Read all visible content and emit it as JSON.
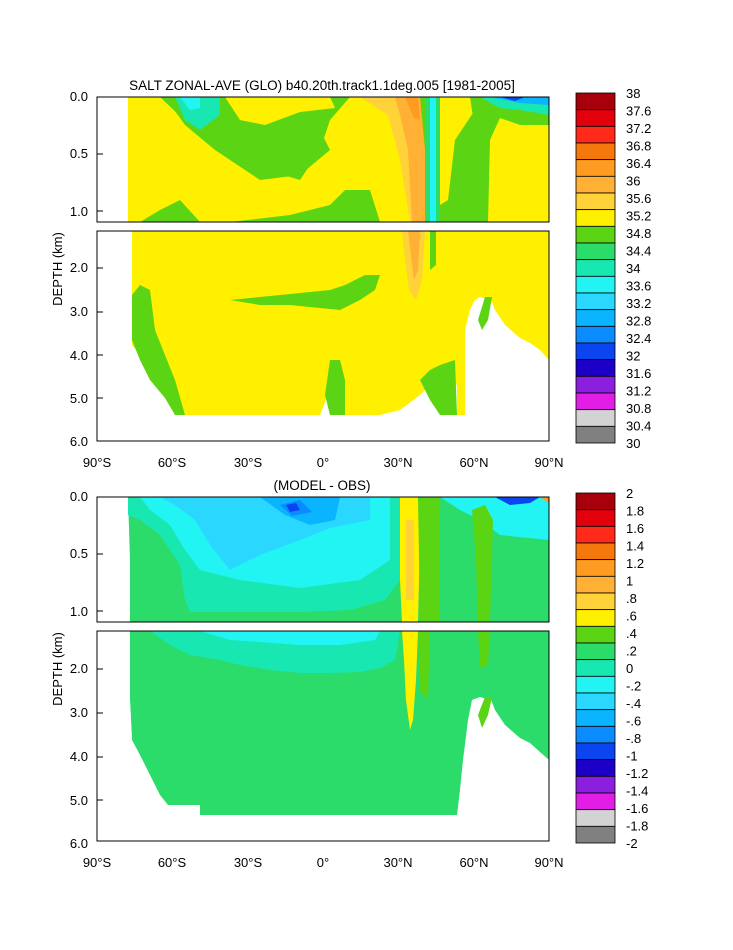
{
  "chart_data": [
    {
      "type": "heatmap",
      "title": "SALT ZONAL-AVE (GLO) b40.20th.track1.1deg.005 [1981-2005]",
      "ylabel": "DEPTH (km)",
      "x_ticks": [
        "90°S",
        "60°S",
        "30°S",
        "0°",
        "30°N",
        "60°N",
        "90°N"
      ],
      "y_ticks_upper": [
        "0.0",
        "0.5",
        "1.0"
      ],
      "y_ticks_lower": [
        "2.0",
        "3.0",
        "4.0",
        "5.0",
        "6.0"
      ],
      "xlim": [
        -90,
        90
      ],
      "ylim_upper_km": [
        0,
        1.1
      ],
      "ylim_lower_km": [
        1.2,
        6.0
      ],
      "colorbar": {
        "labels": [
          "38",
          "37.6",
          "37.2",
          "36.8",
          "36.4",
          "36",
          "35.6",
          "35.2",
          "34.8",
          "34.4",
          "34",
          "33.6",
          "33.2",
          "32.8",
          "32.4",
          "32",
          "31.6",
          "31.2",
          "30.8",
          "30.4",
          "30"
        ],
        "colors": [
          "#a8000a",
          "#e2000c",
          "#ff2a1a",
          "#f4780c",
          "#ff9b21",
          "#ffb035",
          "#ffd23a",
          "#fff000",
          "#5bd414",
          "#2cdc6a",
          "#19e7b1",
          "#22f4f4",
          "#2ad7ff",
          "#0ab4ff",
          "#0a8cff",
          "#0a45f0",
          "#1c00c8",
          "#8c1ee0",
          "#e21ee6",
          "#d3d3d3",
          "#808080"
        ]
      }
    },
    {
      "type": "heatmap",
      "title": "(MODEL - OBS)",
      "ylabel": "DEPTH (km)",
      "x_ticks": [
        "90°S",
        "60°S",
        "30°S",
        "0°",
        "30°N",
        "60°N",
        "90°N"
      ],
      "y_ticks_upper": [
        "0.0",
        "0.5",
        "1.0"
      ],
      "y_ticks_lower": [
        "2.0",
        "3.0",
        "4.0",
        "5.0",
        "6.0"
      ],
      "xlim": [
        -90,
        90
      ],
      "ylim_upper_km": [
        0,
        1.1
      ],
      "ylim_lower_km": [
        1.2,
        6.0
      ],
      "colorbar": {
        "labels": [
          "2",
          "1.8",
          "1.6",
          "1.4",
          "1.2",
          "1",
          ".8",
          ".6",
          ".4",
          ".2",
          "0",
          "-.2",
          "-.4",
          "-.6",
          "-.8",
          "-1",
          "-1.2",
          "-1.4",
          "-1.6",
          "-1.8",
          "-2"
        ],
        "colors": [
          "#a8000a",
          "#e2000c",
          "#ff2a1a",
          "#f4780c",
          "#ff9b21",
          "#ffb035",
          "#ffd23a",
          "#fff000",
          "#5bd414",
          "#2cdc6a",
          "#19e7b1",
          "#22f4f4",
          "#2ad7ff",
          "#0ab4ff",
          "#0a8cff",
          "#0a45f0",
          "#1c00c8",
          "#8c1ee0",
          "#e21ee6",
          "#d3d3d3",
          "#808080"
        ]
      }
    }
  ]
}
